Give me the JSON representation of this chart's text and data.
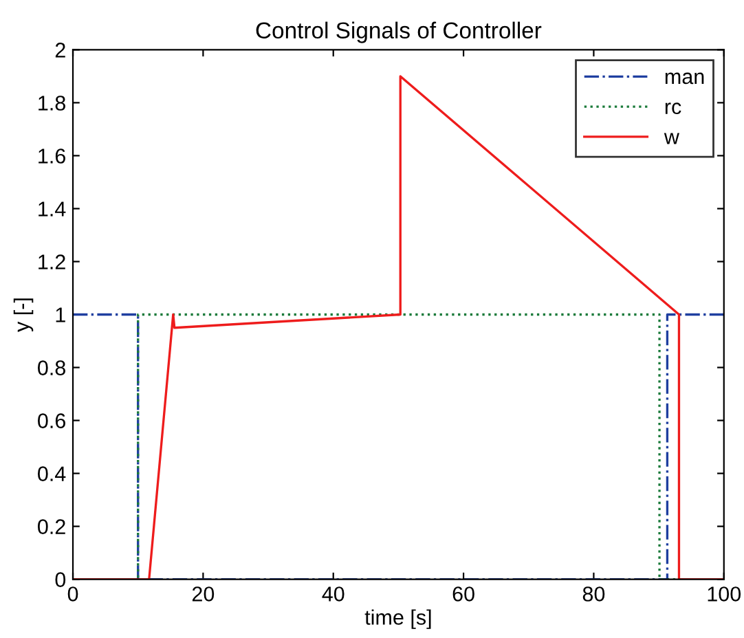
{
  "chart_data": {
    "type": "line",
    "title": "Control Signals of Controller",
    "xlabel": "time [s]",
    "ylabel": "y [-]",
    "xlim": [
      0,
      100
    ],
    "ylim": [
      0,
      2
    ],
    "xticks": [
      0,
      20,
      40,
      60,
      80,
      100
    ],
    "yticks": [
      0,
      0.2,
      0.4,
      0.6,
      0.8,
      1,
      1.2,
      1.4,
      1.6,
      1.8,
      2
    ],
    "grid": false,
    "legend": "top right",
    "marker": "none",
    "series": [
      {
        "name": "man",
        "color": "#1f3fa0",
        "line_style": "dashdot",
        "x": [
          0,
          10,
          10,
          91.3,
          91.3,
          100
        ],
        "values": [
          1,
          1,
          0,
          0,
          1,
          1
        ]
      },
      {
        "name": "rc",
        "color": "#1a7a3a",
        "line_style": "dotted",
        "x": [
          0,
          10,
          10,
          90.1,
          90.1,
          100
        ],
        "values": [
          0,
          0,
          1,
          1,
          0,
          0
        ]
      },
      {
        "name": "w",
        "color": "#ee1c1c",
        "line_style": "solid",
        "x": [
          0,
          11.7,
          15.4,
          15.6,
          50.3,
          50.3,
          93.1,
          93.1,
          100
        ],
        "values": [
          0,
          0,
          1,
          0.95,
          1,
          1.9,
          1,
          0,
          0
        ]
      }
    ]
  }
}
